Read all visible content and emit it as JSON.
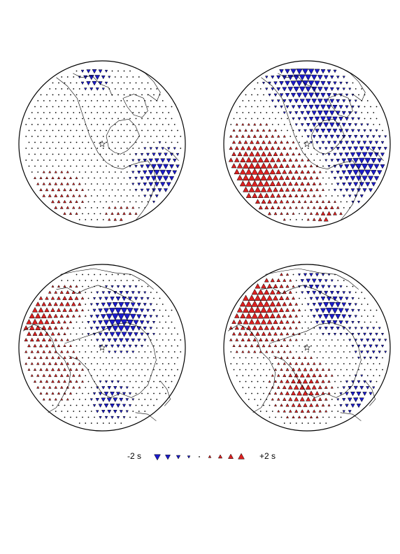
{
  "figure": {
    "panels": [
      {
        "id": "panel-top-left",
        "projection": "orthographic",
        "center_region": "north-america",
        "star": "epicenter",
        "coastlines": "americas"
      },
      {
        "id": "panel-top-right",
        "projection": "orthographic",
        "center_region": "north-america",
        "star": "epicenter",
        "coastlines": "americas"
      },
      {
        "id": "panel-bottom-left",
        "projection": "orthographic",
        "center_region": "eurasia",
        "star": "station",
        "coastlines": "eurasia-africa"
      },
      {
        "id": "panel-bottom-right",
        "projection": "orthographic",
        "center_region": "eurasia",
        "star": "station",
        "coastlines": "eurasia-africa"
      }
    ],
    "colors": {
      "negative": "#1a1acc",
      "positive": "#dd2020",
      "neutral": "#000000",
      "outline": "#000000"
    }
  },
  "legend": {
    "min_label": "-2 s",
    "max_label": "+2 s",
    "scale_values": [
      -2,
      -1.5,
      -1,
      -0.5,
      0,
      0.5,
      1,
      1.5,
      2
    ]
  }
}
